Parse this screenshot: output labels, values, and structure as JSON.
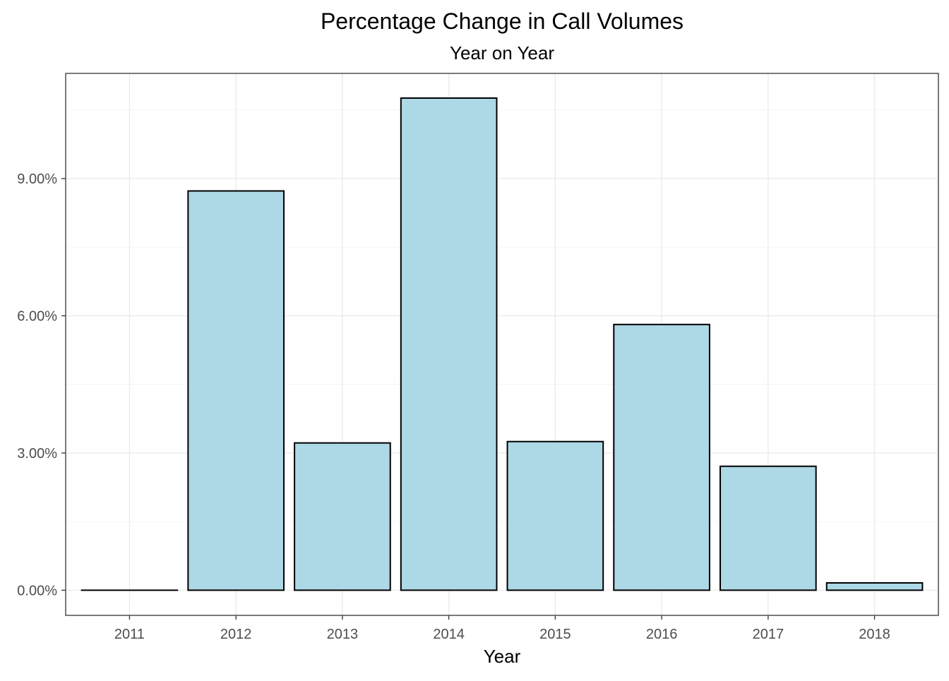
{
  "chart_data": {
    "type": "bar",
    "title": "Percentage Change in Call Volumes",
    "subtitle": "Year on Year",
    "xlabel": "Year",
    "ylabel": "",
    "categories": [
      "2011",
      "2012",
      "2013",
      "2014",
      "2015",
      "2016",
      "2017",
      "2018"
    ],
    "values": [
      0.0,
      8.73,
      3.22,
      10.76,
      3.25,
      5.81,
      2.71,
      0.16
    ],
    "y_ticks": [
      0,
      3,
      6,
      9
    ],
    "y_tick_labels": [
      "0.00%",
      "3.00%",
      "6.00%",
      "9.00%"
    ],
    "ylim": [
      -0.55,
      11.3
    ],
    "grid": true,
    "legend": "none",
    "colors": {
      "bar_fill": "#add8e6",
      "bar_stroke": "#000000"
    }
  }
}
